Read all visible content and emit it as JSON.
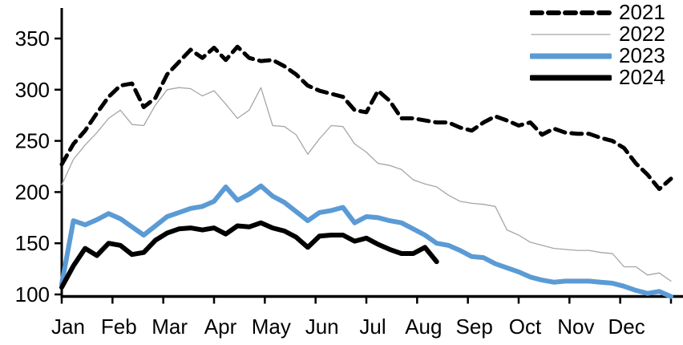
{
  "chart_data": {
    "type": "line",
    "title": "",
    "grid": false,
    "legend_position": "top-right",
    "x_axis": {
      "unit": "weekly points, Jan through Dec",
      "tick_labels": [
        "Jan",
        "Feb",
        "Mar",
        "Apr",
        "May",
        "Jun",
        "Jul",
        "Aug",
        "Sep",
        "Oct",
        "Nov",
        "Dec"
      ],
      "points_full_year": 53
    },
    "y_axis": {
      "min": 100,
      "max": 350,
      "ticks": [
        100,
        150,
        200,
        250,
        300,
        350
      ],
      "tick_labels": [
        "100",
        "150",
        "200",
        "250",
        "300",
        "350"
      ]
    },
    "series": [
      {
        "name": "2021",
        "color": "#000000",
        "style": "dashed",
        "width": 5,
        "values": [
          227,
          247,
          260,
          277,
          293,
          304,
          306,
          283,
          292,
          315,
          327,
          339,
          331,
          341,
          329,
          342,
          331,
          328,
          329,
          323,
          315,
          304,
          299,
          296,
          293,
          280,
          278,
          299,
          289,
          272,
          272,
          270,
          268,
          268,
          263,
          260,
          268,
          274,
          270,
          265,
          268,
          256,
          262,
          258,
          257,
          257,
          253,
          250,
          243,
          228,
          217,
          203,
          213
        ]
      },
      {
        "name": "2022",
        "color": "#a6a6a6",
        "style": "solid",
        "width": 1.3,
        "values": [
          207,
          232,
          246,
          258,
          272,
          280,
          266,
          265,
          285,
          300,
          302,
          301,
          294,
          299,
          286,
          272,
          280,
          302,
          265,
          264,
          256,
          237,
          252,
          265,
          264,
          247,
          239,
          228,
          226,
          222,
          212,
          208,
          205,
          197,
          191,
          189,
          188,
          186,
          163,
          158,
          151,
          148,
          145,
          144,
          143,
          143,
          141,
          140,
          127,
          127,
          119,
          121,
          113
        ]
      },
      {
        "name": "2023",
        "color": "#5b9bd5",
        "style": "solid",
        "width": 6,
        "values": [
          110,
          172,
          168,
          173,
          179,
          174,
          166,
          158,
          167,
          176,
          180,
          184,
          186,
          191,
          205,
          192,
          198,
          206,
          196,
          190,
          181,
          172,
          180,
          182,
          185,
          170,
          176,
          175,
          172,
          170,
          164,
          158,
          150,
          148,
          143,
          137,
          136,
          130,
          126,
          122,
          117,
          114,
          112,
          113,
          113,
          113,
          112,
          111,
          108,
          104,
          101,
          103,
          98
        ]
      },
      {
        "name": "2024",
        "color": "#000000",
        "style": "solid",
        "width": 6,
        "values": [
          107,
          128,
          145,
          138,
          150,
          148,
          139,
          141,
          153,
          160,
          164,
          165,
          163,
          165,
          159,
          167,
          166,
          170,
          165,
          162,
          156,
          146,
          157,
          158,
          158,
          152,
          155,
          149,
          144,
          140,
          140,
          146,
          132
        ]
      }
    ]
  }
}
